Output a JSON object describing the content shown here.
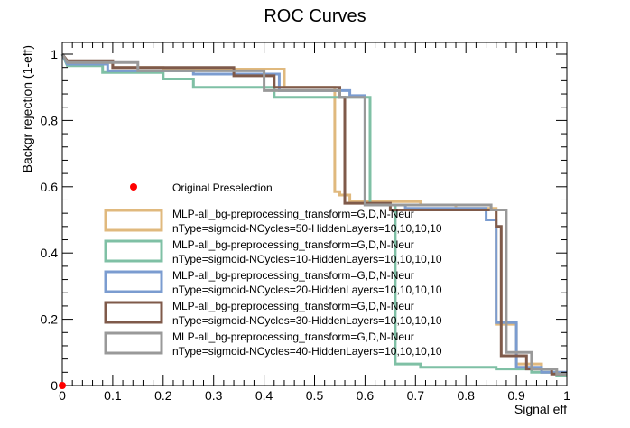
{
  "chart_data": {
    "type": "line",
    "title": "ROC Curves",
    "xlabel": "Signal eff",
    "ylabel": "Backgr rejection (1-eff)",
    "xlim": [
      0,
      1
    ],
    "ylim": [
      0,
      1.03
    ],
    "x_ticks": [
      0,
      0.1,
      0.2,
      0.3,
      0.4,
      0.5,
      0.6,
      0.7,
      0.8,
      0.9,
      1
    ],
    "x_tick_labels": [
      "0",
      "0.1",
      "0.2",
      "0.3",
      "0.4",
      "0.5",
      "0.6",
      "0.7",
      "0.8",
      "0.9",
      "1"
    ],
    "y_ticks": [
      0,
      0.2,
      0.4,
      0.6,
      0.8,
      1
    ],
    "y_tick_labels": [
      "0",
      "0.2",
      "0.4",
      "0.6",
      "0.8",
      "1"
    ],
    "grid": false,
    "legend_position": "bottom-left",
    "reference_point": {
      "name": "Original Preselection",
      "x": 0,
      "y": 0,
      "color": "#ff0000"
    },
    "series": [
      {
        "name": "MLP-all_bg-preprocessing_transform=G,D,N-Neur nType=sigmoid-NCycles=50-HiddenLayers=10,10,10,10",
        "name_lines": [
          "MLP-all_bg-preprocessing_transform=G,D,N-Neur",
          "nType=sigmoid-NCycles=50-HiddenLayers=10,10,10,10"
        ],
        "color": "#e0b97e",
        "x": [
          0,
          0.01,
          0.1,
          0.1,
          0.2,
          0.2,
          0.44,
          0.44,
          0.54,
          0.54,
          0.55,
          0.55,
          0.57,
          0.57,
          0.71,
          0.71,
          0.78,
          0.78,
          0.86,
          0.86,
          0.9,
          0.9,
          0.95,
          0.95,
          0.99,
          0.99,
          1
        ],
        "y": [
          1,
          0.975,
          0.975,
          0.96,
          0.96,
          0.955,
          0.955,
          0.9,
          0.9,
          0.585,
          0.585,
          0.575,
          0.575,
          0.555,
          0.555,
          0.545,
          0.545,
          0.535,
          0.535,
          0.185,
          0.185,
          0.065,
          0.065,
          0.04,
          0.04,
          0.035,
          0.035
        ]
      },
      {
        "name": "MLP-all_bg-preprocessing_transform=G,D,N-Neur nType=sigmoid-NCycles=10-HiddenLayers=10,10,10,10",
        "name_lines": [
          "MLP-all_bg-preprocessing_transform=G,D,N-Neur",
          "nType=sigmoid-NCycles=10-HiddenLayers=10,10,10,10"
        ],
        "color": "#7fc0a5",
        "x": [
          0,
          0.01,
          0.08,
          0.08,
          0.2,
          0.2,
          0.26,
          0.26,
          0.42,
          0.42,
          0.61,
          0.61,
          0.66,
          0.66,
          0.71,
          0.71,
          0.86,
          0.86,
          0.93,
          0.93,
          0.98,
          0.98,
          1
        ],
        "y": [
          1,
          0.965,
          0.965,
          0.945,
          0.945,
          0.925,
          0.925,
          0.9,
          0.9,
          0.87,
          0.87,
          0.545,
          0.545,
          0.065,
          0.065,
          0.055,
          0.055,
          0.05,
          0.05,
          0.04,
          0.04,
          0.03,
          0.03
        ]
      },
      {
        "name": "MLP-all_bg-preprocessing_transform=G,D,N-Neur nType=sigmoid-NCycles=20-HiddenLayers=10,10,10,10",
        "name_lines": [
          "MLP-all_bg-preprocessing_transform=G,D,N-Neur",
          "nType=sigmoid-NCycles=20-HiddenLayers=10,10,10,10"
        ],
        "color": "#7b9cd0",
        "x": [
          0,
          0.01,
          0.09,
          0.09,
          0.26,
          0.26,
          0.43,
          0.43,
          0.57,
          0.57,
          0.6,
          0.6,
          0.68,
          0.68,
          0.84,
          0.84,
          0.86,
          0.86,
          0.9,
          0.9,
          0.95,
          0.95,
          1
        ],
        "y": [
          1,
          0.97,
          0.97,
          0.95,
          0.95,
          0.94,
          0.94,
          0.89,
          0.89,
          0.875,
          0.875,
          0.545,
          0.545,
          0.535,
          0.535,
          0.5,
          0.5,
          0.19,
          0.19,
          0.055,
          0.055,
          0.04,
          0.04
        ]
      },
      {
        "name": "MLP-all_bg-preprocessing_transform=G,D,N-Neur nType=sigmoid-NCycles=30-HiddenLayers=10,10,10,10",
        "name_lines": [
          "MLP-all_bg-preprocessing_transform=G,D,N-Neur",
          "nType=sigmoid-NCycles=30-HiddenLayers=10,10,10,10"
        ],
        "color": "#7f5a4a",
        "x": [
          0,
          0.01,
          0.1,
          0.1,
          0.34,
          0.34,
          0.42,
          0.42,
          0.55,
          0.55,
          0.56,
          0.56,
          0.65,
          0.65,
          0.86,
          0.86,
          0.87,
          0.87,
          0.92,
          0.92,
          0.97,
          0.97,
          1
        ],
        "y": [
          1,
          0.98,
          0.98,
          0.96,
          0.96,
          0.935,
          0.935,
          0.9,
          0.9,
          0.87,
          0.87,
          0.55,
          0.55,
          0.53,
          0.53,
          0.48,
          0.48,
          0.09,
          0.09,
          0.05,
          0.05,
          0.035,
          0.035
        ]
      },
      {
        "name": "MLP-all_bg-preprocessing_transform=G,D,N-Neur nType=sigmoid-NCycles=40-HiddenLayers=10,10,10,10",
        "name_lines": [
          "MLP-all_bg-preprocessing_transform=G,D,N-Neur",
          "nType=sigmoid-NCycles=40-HiddenLayers=10,10,10,10"
        ],
        "color": "#999999",
        "x": [
          0,
          0.01,
          0.15,
          0.15,
          0.4,
          0.4,
          0.55,
          0.55,
          0.6,
          0.6,
          0.85,
          0.85,
          0.88,
          0.88,
          0.93,
          0.93,
          0.98,
          0.98,
          1
        ],
        "y": [
          1,
          0.975,
          0.975,
          0.95,
          0.95,
          0.89,
          0.89,
          0.87,
          0.87,
          0.545,
          0.545,
          0.53,
          0.53,
          0.1,
          0.1,
          0.05,
          0.05,
          0.035,
          0.035
        ]
      }
    ]
  }
}
